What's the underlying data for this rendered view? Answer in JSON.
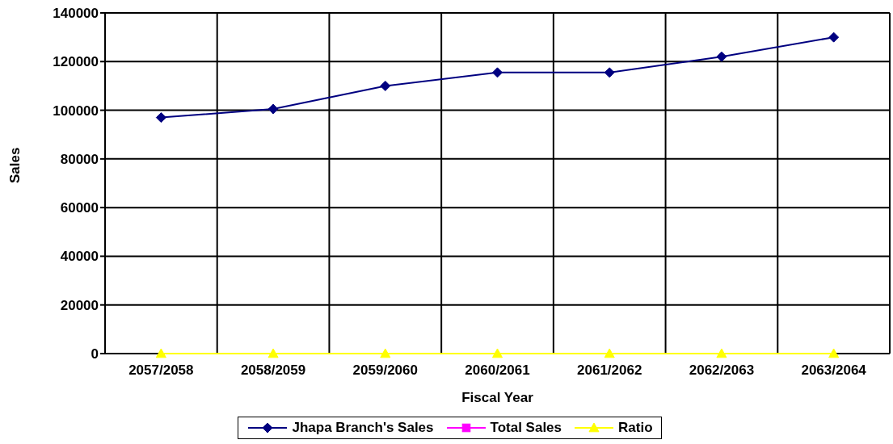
{
  "chart_data": {
    "type": "line",
    "xlabel": "Fiscal Year",
    "ylabel": "Sales",
    "categories": [
      "2057/2058",
      "2058/2059",
      "2059/2060",
      "2060/2061",
      "2061/2062",
      "2062/2063",
      "2063/2064"
    ],
    "series": [
      {
        "name": "Jhapa Branch's Sales",
        "color": "#000080",
        "marker": "diamond",
        "values": [
          97000,
          100500,
          110000,
          115500,
          115500,
          122000,
          130000
        ]
      },
      {
        "name": "Total Sales",
        "color": "#ff00ff",
        "marker": "square",
        "values": [
          null,
          null,
          null,
          null,
          null,
          null,
          null
        ]
      },
      {
        "name": "Ratio",
        "color": "#ffff00",
        "marker": "triangle",
        "values": [
          0,
          0,
          0,
          0,
          0,
          0,
          0
        ]
      }
    ],
    "ylim": [
      0,
      140000
    ],
    "yticks": [
      0,
      20000,
      40000,
      60000,
      80000,
      100000,
      120000,
      140000
    ],
    "grid": true,
    "legend": "bottom",
    "line_style": "solid"
  }
}
